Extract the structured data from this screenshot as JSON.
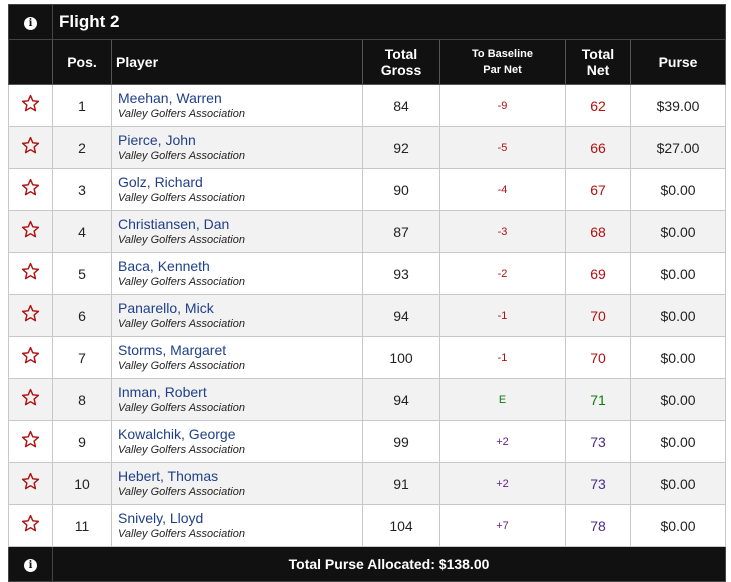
{
  "flight": {
    "title": "Flight 2",
    "info_icon": "i"
  },
  "columns": {
    "pos": "Pos.",
    "player": "Player",
    "gross_line1": "Total",
    "gross_line2": "Gross",
    "par_line1": "To Baseline",
    "par_line2": "Par Net",
    "net_line1": "Total",
    "net_line2": "Net",
    "purse": "Purse"
  },
  "rows": [
    {
      "pos": "1",
      "name": "Meehan, Warren",
      "assoc": "Valley Golfers Association",
      "gross": "84",
      "par": "-9",
      "net": "62",
      "purse": "$39.00",
      "tone": "neg"
    },
    {
      "pos": "2",
      "name": "Pierce, John",
      "assoc": "Valley Golfers Association",
      "gross": "92",
      "par": "-5",
      "net": "66",
      "purse": "$27.00",
      "tone": "neg"
    },
    {
      "pos": "3",
      "name": "Golz, Richard",
      "assoc": "Valley Golfers Association",
      "gross": "90",
      "par": "-4",
      "net": "67",
      "purse": "$0.00",
      "tone": "neg"
    },
    {
      "pos": "4",
      "name": "Christiansen, Dan",
      "assoc": "Valley Golfers Association",
      "gross": "87",
      "par": "-3",
      "net": "68",
      "purse": "$0.00",
      "tone": "neg"
    },
    {
      "pos": "5",
      "name": "Baca, Kenneth",
      "assoc": "Valley Golfers Association",
      "gross": "93",
      "par": "-2",
      "net": "69",
      "purse": "$0.00",
      "tone": "neg"
    },
    {
      "pos": "6",
      "name": "Panarello, Mick",
      "assoc": "Valley Golfers Association",
      "gross": "94",
      "par": "-1",
      "net": "70",
      "purse": "$0.00",
      "tone": "neg"
    },
    {
      "pos": "7",
      "name": "Storms, Margaret",
      "assoc": "Valley Golfers Association",
      "gross": "100",
      "par": "-1",
      "net": "70",
      "purse": "$0.00",
      "tone": "neg"
    },
    {
      "pos": "8",
      "name": "Inman, Robert",
      "assoc": "Valley Golfers Association",
      "gross": "94",
      "par": "E",
      "net": "71",
      "purse": "$0.00",
      "tone": "even"
    },
    {
      "pos": "9",
      "name": "Kowalchik, George",
      "assoc": "Valley Golfers Association",
      "gross": "99",
      "par": "+2",
      "net": "73",
      "purse": "$0.00",
      "tone": "plus"
    },
    {
      "pos": "10",
      "name": "Hebert, Thomas",
      "assoc": "Valley Golfers Association",
      "gross": "91",
      "par": "+2",
      "net": "73",
      "purse": "$0.00",
      "tone": "plus"
    },
    {
      "pos": "11",
      "name": "Snively, Lloyd",
      "assoc": "Valley Golfers Association",
      "gross": "104",
      "par": "+7",
      "net": "78",
      "purse": "$0.00",
      "tone": "plus"
    }
  ],
  "footer": {
    "info_icon": "i",
    "total_label": "Total Purse Allocated: $138.00"
  },
  "colors": {
    "header_bg": "#111111",
    "star": "#b01010",
    "link": "#1f3f8a",
    "under": "#b01010",
    "even": "#0d7a0d",
    "over": "#4a2a8a"
  },
  "icons": {
    "row_favorite": "star-outline-icon",
    "info": "info-circle-icon"
  }
}
